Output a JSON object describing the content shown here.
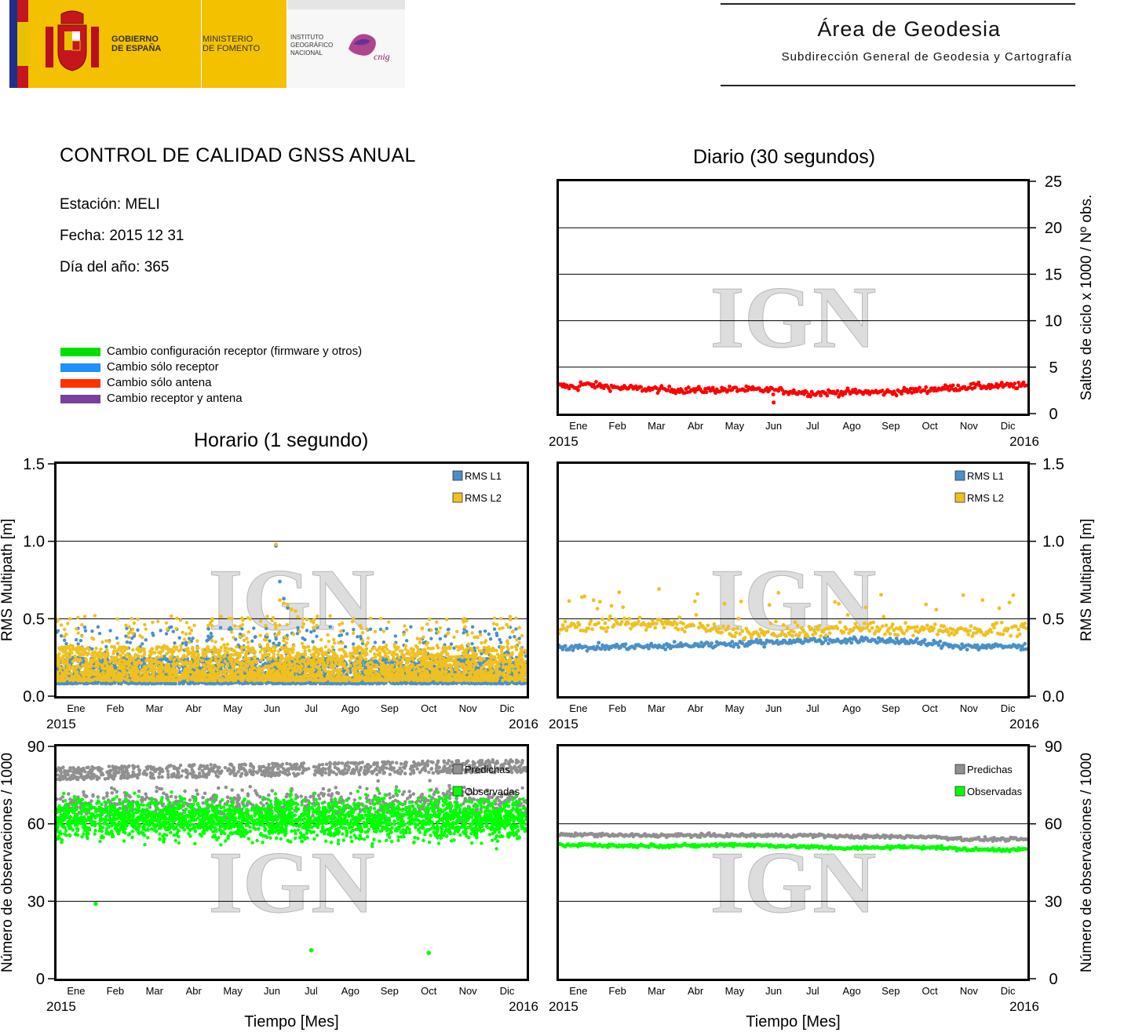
{
  "header": {
    "gov_line1": "GOBIERNO",
    "gov_line2": "DE ESPAÑA",
    "ministry_line1": "MINISTERIO",
    "ministry_line2": "DE FOMENTO",
    "ign_line1": "INSTITUTO",
    "ign_line2": "GEOGRÁFICO",
    "ign_line3": "NACIONAL",
    "cnig_logo": "cnig",
    "area_title": "Área de Geodesia",
    "area_subtitle": "Subdirección General de Geodesia y Cartografía"
  },
  "info": {
    "title": "CONTROL DE CALIDAD GNSS ANUAL",
    "station": "Estación: MELI",
    "date": "Fecha: 2015 12 31",
    "doy": "Día del año: 365"
  },
  "legend": [
    {
      "label": "Cambio configuración receptor (firmware y otros)",
      "color": "#00dd00"
    },
    {
      "label": "Cambio sólo receptor",
      "color": "#1e90ff"
    },
    {
      "label": "Cambio sólo antena",
      "color": "#ff3300"
    },
    {
      "label": "Cambio receptor y antena",
      "color": "#7b3f9e"
    }
  ],
  "section_titles": {
    "daily": "Diario (30 segundos)",
    "hourly": "Horario (1 segundo)"
  },
  "watermark": "IGN",
  "colors": {
    "cycle_slips": "#ff0000",
    "rms_l1": "#4a90c8",
    "rms_l2": "#f0c020",
    "predicted": "#909090",
    "observed": "#00ff00",
    "grid": "#000000"
  },
  "chart_data": [
    {
      "id": "daily-cycle-slips",
      "type": "scatter",
      "title": "Diario (30 segundos)",
      "ylabel": "Saltos de ciclo x 1000 / Nº obs.",
      "xlabel": "",
      "ylim": [
        0,
        25
      ],
      "yticks": [
        "0",
        "5",
        "10",
        "15",
        "20",
        "25"
      ],
      "yaxis_side": "right",
      "xticks": [
        "Ene",
        "Feb",
        "Mar",
        "Abr",
        "May",
        "Jun",
        "Jul",
        "Ago",
        "Sep",
        "Oct",
        "Nov",
        "Dic"
      ],
      "x_start_label": "2015",
      "x_end_label": "2016",
      "grid": true,
      "series": [
        {
          "color": "#ff0000",
          "values_monthly_mean": [
            3.2,
            2.8,
            2.6,
            2.5,
            2.6,
            2.5,
            2.2,
            2.3,
            2.3,
            2.6,
            2.9,
            3.0
          ],
          "outliers": [
            {
              "x": "Jun",
              "y": 1.2
            }
          ]
        }
      ]
    },
    {
      "id": "hourly-rms",
      "type": "scatter",
      "title": "Horario (1 segundo)",
      "ylabel": "RMS Multipath [m]",
      "ylim": [
        0.0,
        1.5
      ],
      "yticks": [
        "0.0",
        "0.5",
        "1.0",
        "1.5"
      ],
      "yaxis_side": "left",
      "xticks": [
        "Ene",
        "Feb",
        "Mar",
        "Abr",
        "May",
        "Jun",
        "Jul",
        "Ago",
        "Sep",
        "Oct",
        "Nov",
        "Dic"
      ],
      "x_start_label": "2015",
      "x_end_label": "2016",
      "grid": true,
      "series": [
        {
          "name": "RMS L1",
          "color": "#4a90c8",
          "band": [
            0.08,
            0.25
          ],
          "max_outliers": [
            0.97,
            0.74,
            0.63,
            0.57
          ]
        },
        {
          "name": "RMS L2",
          "color": "#f0c020",
          "band": [
            0.1,
            0.32
          ],
          "max_outliers": [
            0.98,
            0.62,
            0.6,
            0.59,
            0.56,
            0.55
          ]
        }
      ]
    },
    {
      "id": "daily-rms",
      "type": "scatter",
      "title": "",
      "ylabel": "RMS Multipath [m]",
      "ylim": [
        0.0,
        1.5
      ],
      "yticks": [
        "0.0",
        "0.5",
        "1.0",
        "1.5"
      ],
      "yaxis_side": "right",
      "xticks": [
        "Ene",
        "Feb",
        "Mar",
        "Abr",
        "May",
        "Jun",
        "Jul",
        "Ago",
        "Sep",
        "Oct",
        "Nov",
        "Dic"
      ],
      "x_start_label": "2015",
      "x_end_label": "2016",
      "grid": true,
      "series": [
        {
          "name": "RMS L1",
          "color": "#4a90c8",
          "values_monthly_mean": [
            0.31,
            0.32,
            0.32,
            0.33,
            0.34,
            0.35,
            0.36,
            0.36,
            0.36,
            0.34,
            0.32,
            0.32
          ]
        },
        {
          "name": "RMS L2",
          "color": "#f0c020",
          "values_monthly_mean": [
            0.43,
            0.47,
            0.47,
            0.45,
            0.41,
            0.4,
            0.42,
            0.44,
            0.43,
            0.43,
            0.43,
            0.43
          ]
        }
      ]
    },
    {
      "id": "hourly-observations",
      "type": "scatter",
      "title": "",
      "ylabel": "Número de observaciones / 1000",
      "xlabel": "Tiempo [Mes]",
      "ylim": [
        0,
        90
      ],
      "yticks": [
        "0",
        "30",
        "60",
        "90"
      ],
      "yaxis_side": "left",
      "xticks": [
        "Ene",
        "Feb",
        "Mar",
        "Abr",
        "May",
        "Jun",
        "Jul",
        "Ago",
        "Sep",
        "Oct",
        "Nov",
        "Dic"
      ],
      "x_start_label": "2015",
      "x_end_label": "2016",
      "grid": true,
      "series": [
        {
          "name": "Predichas",
          "color": "#909090",
          "band": [
            55,
            80
          ]
        },
        {
          "name": "Observadas",
          "color": "#00ff00",
          "band": [
            48,
            78
          ],
          "outliers": [
            {
              "x": "Feb",
              "y": 29
            },
            {
              "x": "Jul",
              "y": 11
            },
            {
              "x": "Oct",
              "y": 10
            }
          ]
        }
      ]
    },
    {
      "id": "daily-observations",
      "type": "scatter",
      "title": "",
      "ylabel": "Número de observaciones / 1000",
      "xlabel": "Tiempo [Mes]",
      "ylim": [
        0,
        90
      ],
      "yticks": [
        "0",
        "30",
        "60",
        "90"
      ],
      "yaxis_side": "right",
      "xticks": [
        "Ene",
        "Feb",
        "Mar",
        "Abr",
        "May",
        "Jun",
        "Jul",
        "Ago",
        "Sep",
        "Oct",
        "Nov",
        "Dic"
      ],
      "x_start_label": "2015",
      "x_end_label": "2016",
      "grid": true,
      "series": [
        {
          "name": "Predichas",
          "color": "#909090",
          "values_monthly_mean": [
            56,
            55.5,
            55.5,
            55.5,
            55.5,
            55.5,
            55.5,
            55,
            55,
            55,
            54,
            54
          ]
        },
        {
          "name": "Observadas",
          "color": "#00ff00",
          "values_monthly_mean": [
            52,
            51.5,
            51.5,
            51.5,
            52,
            51.5,
            51,
            50.5,
            51,
            51,
            50,
            50
          ]
        }
      ]
    }
  ]
}
